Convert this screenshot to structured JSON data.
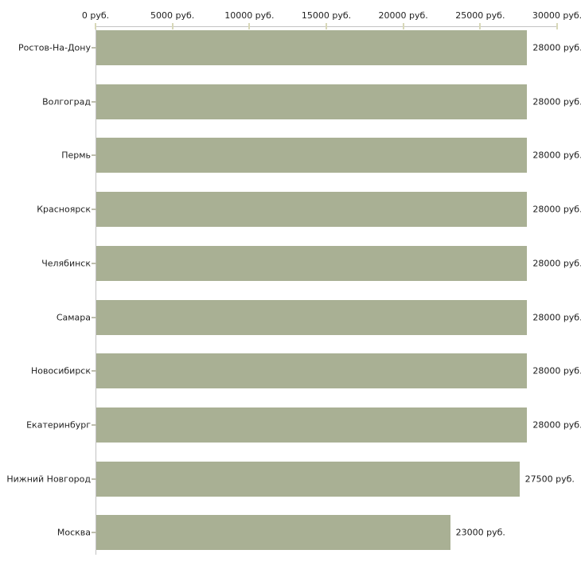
{
  "chart_data": {
    "type": "bar",
    "orientation": "horizontal",
    "title": "",
    "xlabel": "",
    "ylabel": "",
    "xlim": [
      0,
      30000
    ],
    "grid": false,
    "legend": false,
    "x_axis_position": "top",
    "unit_suffix": " руб.",
    "x_ticks": [
      {
        "value": 0,
        "label": "0 руб."
      },
      {
        "value": 5000,
        "label": "5000 руб."
      },
      {
        "value": 10000,
        "label": "10000 руб."
      },
      {
        "value": 15000,
        "label": "15000 руб."
      },
      {
        "value": 20000,
        "label": "20000 руб."
      },
      {
        "value": 25000,
        "label": "25000 руб."
      },
      {
        "value": 30000,
        "label": "30000 руб."
      }
    ],
    "categories": [
      "Ростов-На-Дону",
      "Волгоград",
      "Пермь",
      "Красноярск",
      "Челябинск",
      "Самара",
      "Новосибирск",
      "Екатеринбург",
      "Нижний Новгород",
      "Москва"
    ],
    "values": [
      28000,
      28000,
      28000,
      28000,
      28000,
      28000,
      28000,
      28000,
      27500,
      23000
    ],
    "bars": [
      {
        "category": "Ростов-На-Дону",
        "value": 28000,
        "value_label": "28000 руб."
      },
      {
        "category": "Волгоград",
        "value": 28000,
        "value_label": "28000 руб."
      },
      {
        "category": "Пермь",
        "value": 28000,
        "value_label": "28000 руб."
      },
      {
        "category": "Красноярск",
        "value": 28000,
        "value_label": "28000 руб."
      },
      {
        "category": "Челябинск",
        "value": 28000,
        "value_label": "28000 руб."
      },
      {
        "category": "Самара",
        "value": 28000,
        "value_label": "28000 руб."
      },
      {
        "category": "Новосибирск",
        "value": 28000,
        "value_label": "28000 руб."
      },
      {
        "category": "Екатеринбург",
        "value": 28000,
        "value_label": "28000 руб."
      },
      {
        "category": "Нижний Новгород",
        "value": 27500,
        "value_label": "27500 руб."
      },
      {
        "category": "Москва",
        "value": 23000,
        "value_label": "23000 руб."
      }
    ],
    "colors": {
      "bar": "#a9b094",
      "axis_line": "#c3c3c3",
      "x_tick_mark": "#d8d8b8",
      "row_tick_mark": "#bdbdad",
      "text": "#1f1f1f",
      "background": "#ffffff"
    }
  }
}
